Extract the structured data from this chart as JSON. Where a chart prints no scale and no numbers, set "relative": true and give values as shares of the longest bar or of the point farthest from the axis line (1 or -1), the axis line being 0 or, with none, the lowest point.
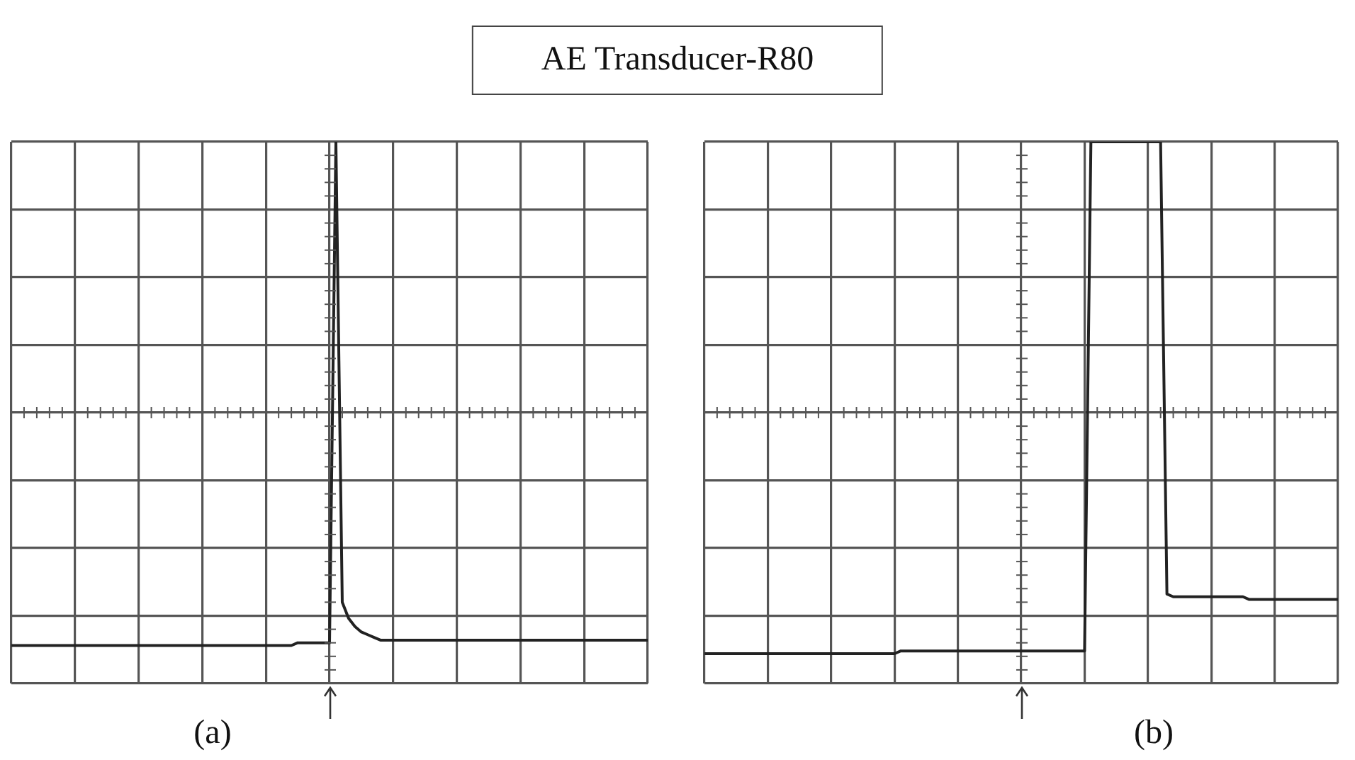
{
  "chart_data": [
    {
      "type": "line",
      "title": "AE Transducer-R80",
      "xlabel": "(a)",
      "relative": true,
      "grid": true,
      "legend": false,
      "marker": "none",
      "line_style": "solid",
      "categories": [
        null,
        null,
        null,
        null,
        null,
        null,
        null,
        null,
        null,
        null,
        null,
        null,
        null,
        null,
        null,
        null,
        null,
        null,
        null,
        null,
        null,
        null,
        null,
        null,
        null,
        null,
        null,
        null,
        null,
        null,
        null,
        null,
        null,
        null,
        null,
        null,
        null,
        null,
        null,
        null,
        null,
        null,
        null,
        null,
        null,
        null,
        null,
        null,
        null,
        null,
        null,
        null,
        null,
        null,
        null,
        null,
        null,
        null,
        null,
        null,
        null,
        null,
        null,
        null,
        null,
        null,
        null,
        null,
        null,
        null,
        null,
        null,
        null,
        null,
        null,
        null,
        null,
        null,
        null,
        null,
        null,
        null,
        null,
        null,
        null,
        null,
        null,
        null,
        null,
        null,
        null,
        null,
        null,
        null,
        null,
        null,
        null,
        null,
        null,
        null,
        null
      ],
      "series": [
        {
          "color": "#222222",
          "values": [
            -0.86,
            -0.86,
            -0.86,
            -0.86,
            -0.86,
            -0.86,
            -0.86,
            -0.86,
            -0.86,
            -0.86,
            -0.86,
            -0.86,
            -0.86,
            -0.86,
            -0.86,
            -0.86,
            -0.86,
            -0.86,
            -0.86,
            -0.86,
            -0.86,
            -0.86,
            -0.86,
            -0.86,
            -0.86,
            -0.86,
            -0.86,
            -0.86,
            -0.86,
            -0.86,
            -0.86,
            -0.86,
            -0.86,
            -0.86,
            -0.86,
            -0.86,
            -0.86,
            -0.86,
            -0.86,
            -0.86,
            -0.86,
            -0.86,
            -0.86,
            -0.86,
            -0.86,
            -0.85,
            -0.85,
            -0.85,
            -0.85,
            -0.85,
            -0.85,
            1,
            -0.7,
            -0.76,
            -0.79,
            -0.81,
            -0.82,
            -0.83,
            -0.84,
            -0.84,
            -0.84,
            -0.84,
            -0.84,
            -0.84,
            -0.84,
            -0.84,
            -0.84,
            -0.84,
            -0.84,
            -0.84,
            -0.84,
            -0.84,
            -0.84,
            -0.84,
            -0.84,
            -0.84,
            -0.84,
            -0.84,
            -0.84,
            -0.84,
            -0.84,
            -0.84,
            -0.84,
            -0.84,
            -0.84,
            -0.84,
            -0.84,
            -0.84,
            -0.84,
            -0.84,
            -0.84,
            -0.84,
            -0.84,
            -0.84,
            -0.84,
            -0.84,
            -0.84,
            -0.84,
            -0.84,
            -0.84,
            -0.84
          ]
        }
      ]
    },
    {
      "type": "line",
      "xlabel": "(b)",
      "relative": true,
      "grid": true,
      "legend": false,
      "marker": "none",
      "line_style": "solid",
      "categories": [
        null,
        null,
        null,
        null,
        null,
        null,
        null,
        null,
        null,
        null,
        null,
        null,
        null,
        null,
        null,
        null,
        null,
        null,
        null,
        null,
        null,
        null,
        null,
        null,
        null,
        null,
        null,
        null,
        null,
        null,
        null,
        null,
        null,
        null,
        null,
        null,
        null,
        null,
        null,
        null,
        null,
        null,
        null,
        null,
        null,
        null,
        null,
        null,
        null,
        null,
        null,
        null,
        null,
        null,
        null,
        null,
        null,
        null,
        null,
        null,
        null,
        null,
        null,
        null,
        null,
        null,
        null,
        null,
        null,
        null,
        null,
        null,
        null,
        null,
        null,
        null,
        null,
        null,
        null,
        null,
        null,
        null,
        null,
        null,
        null,
        null,
        null,
        null,
        null,
        null,
        null,
        null,
        null,
        null,
        null,
        null,
        null,
        null,
        null,
        null,
        null
      ],
      "series": [
        {
          "color": "#222222",
          "values": [
            -0.89,
            -0.89,
            -0.89,
            -0.89,
            -0.89,
            -0.89,
            -0.89,
            -0.89,
            -0.89,
            -0.89,
            -0.89,
            -0.89,
            -0.89,
            -0.89,
            -0.89,
            -0.89,
            -0.89,
            -0.89,
            -0.89,
            -0.89,
            -0.89,
            -0.89,
            -0.89,
            -0.89,
            -0.89,
            -0.89,
            -0.89,
            -0.89,
            -0.89,
            -0.89,
            -0.89,
            -0.88,
            -0.88,
            -0.88,
            -0.88,
            -0.88,
            -0.88,
            -0.88,
            -0.88,
            -0.88,
            -0.88,
            -0.88,
            -0.88,
            -0.88,
            -0.88,
            -0.88,
            -0.88,
            -0.88,
            -0.88,
            -0.88,
            -0.88,
            -0.88,
            -0.88,
            -0.88,
            -0.88,
            -0.88,
            -0.88,
            -0.88,
            -0.88,
            -0.88,
            -0.88,
            1,
            1,
            1,
            1,
            1,
            1,
            1,
            1,
            1,
            1,
            1,
            1,
            -0.67,
            -0.68,
            -0.68,
            -0.68,
            -0.68,
            -0.68,
            -0.68,
            -0.68,
            -0.68,
            -0.68,
            -0.68,
            -0.68,
            -0.68,
            -0.69,
            -0.69,
            -0.69,
            -0.69,
            -0.69,
            -0.69,
            -0.69,
            -0.69,
            -0.69,
            -0.69,
            -0.69,
            -0.69,
            -0.69,
            -0.69,
            -0.69
          ]
        }
      ]
    }
  ]
}
